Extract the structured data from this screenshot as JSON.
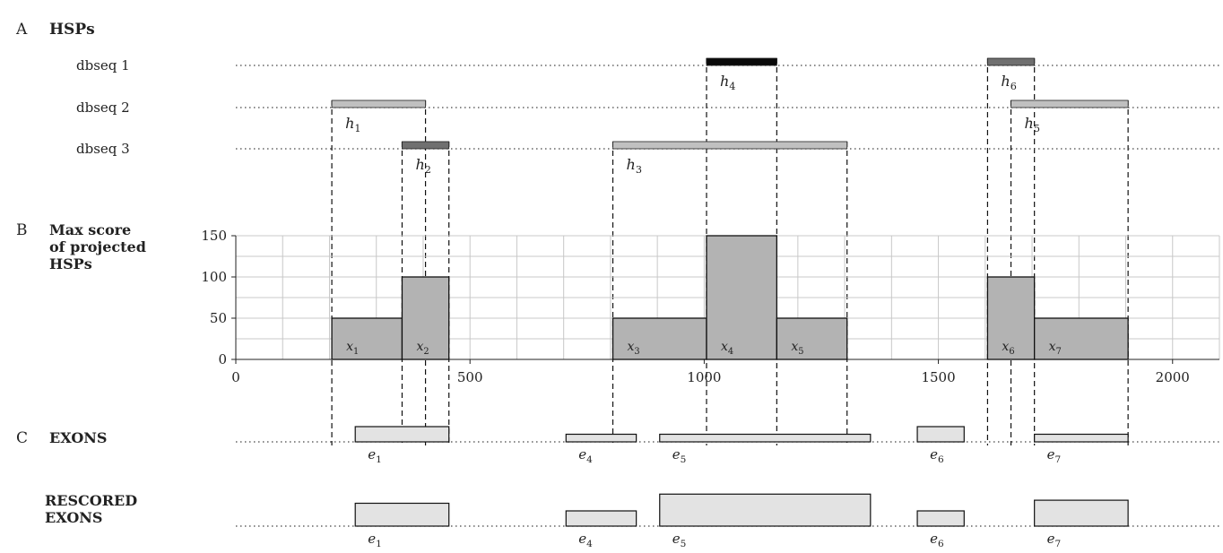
{
  "panels": {
    "a": {
      "letter": "A",
      "title": "HSPs"
    },
    "b": {
      "letter": "B",
      "title_lines": [
        "Max score",
        "of projected",
        "HSPs"
      ]
    },
    "c": {
      "letter": "C",
      "title": "EXONS"
    },
    "d": {
      "title_lines": [
        "RESCORED",
        "EXONS"
      ]
    }
  },
  "tracks": [
    "dbseq 1",
    "dbseq 2",
    "dbseq 3"
  ],
  "hsps": [
    {
      "label": "h",
      "sub": "1",
      "track": 1,
      "start": 205,
      "end": 405,
      "color": "#c0c0c0"
    },
    {
      "label": "h",
      "sub": "2",
      "track": 2,
      "start": 355,
      "end": 455,
      "color": "#707070"
    },
    {
      "label": "h",
      "sub": "3",
      "track": 2,
      "start": 805,
      "end": 1305,
      "color": "#c0c0c0"
    },
    {
      "label": "h",
      "sub": "4",
      "track": 0,
      "start": 1005,
      "end": 1155,
      "color": "#0a0a0a"
    },
    {
      "label": "h",
      "sub": "6",
      "track": 0,
      "start": 1605,
      "end": 1705,
      "color": "#707070"
    },
    {
      "label": "h",
      "sub": "5",
      "track": 1,
      "start": 1655,
      "end": 1905,
      "color": "#c0c0c0"
    }
  ],
  "chart_data": {
    "type": "bar",
    "xlim": [
      0,
      2100
    ],
    "ylim": [
      0,
      150
    ],
    "x_ticks": [
      0,
      500,
      1000,
      1500,
      2000
    ],
    "y_ticks": [
      0,
      50,
      100,
      150
    ],
    "grid": true,
    "segments": [
      {
        "label": "x",
        "sub": "1",
        "start": 205,
        "end": 355,
        "value": 50
      },
      {
        "label": "x",
        "sub": "2",
        "start": 355,
        "end": 455,
        "value": 100
      },
      {
        "label": "x",
        "sub": "3",
        "start": 805,
        "end": 1005,
        "value": 50
      },
      {
        "label": "x",
        "sub": "4",
        "start": 1005,
        "end": 1155,
        "value": 150
      },
      {
        "label": "x",
        "sub": "5",
        "start": 1155,
        "end": 1305,
        "value": 50
      },
      {
        "label": "x",
        "sub": "6",
        "start": 1605,
        "end": 1705,
        "value": 100
      },
      {
        "label": "x",
        "sub": "7",
        "start": 1705,
        "end": 1905,
        "value": 50
      }
    ]
  },
  "exons": [
    {
      "label": "e",
      "sub": "1",
      "start": 255,
      "end": 455,
      "score": 1
    },
    {
      "label": "e",
      "sub": "4",
      "start": 705,
      "end": 855,
      "score": 0.5
    },
    {
      "label": "e",
      "sub": "5",
      "start": 905,
      "end": 1355,
      "score": 0.5
    },
    {
      "label": "e",
      "sub": "6",
      "start": 1455,
      "end": 1555,
      "score": 1
    },
    {
      "label": "e",
      "sub": "7",
      "start": 1705,
      "end": 1905,
      "score": 0.5
    }
  ],
  "rescored_exons": [
    {
      "label": "e",
      "sub": "1",
      "start": 255,
      "end": 455,
      "score": 1.5
    },
    {
      "label": "e",
      "sub": "4",
      "start": 705,
      "end": 855,
      "score": 1
    },
    {
      "label": "e",
      "sub": "5",
      "start": 905,
      "end": 1355,
      "score": 2.1
    },
    {
      "label": "e",
      "sub": "6",
      "start": 1455,
      "end": 1555,
      "score": 1
    },
    {
      "label": "e",
      "sub": "7",
      "start": 1705,
      "end": 1905,
      "score": 1.7
    }
  ],
  "guides": [
    205,
    355,
    405,
    455,
    805,
    1005,
    1155,
    1305,
    1605,
    1655,
    1705,
    1905
  ],
  "colors": {
    "bar_fill": "#b3b3b3",
    "exon_fill": "#e3e3e3"
  }
}
